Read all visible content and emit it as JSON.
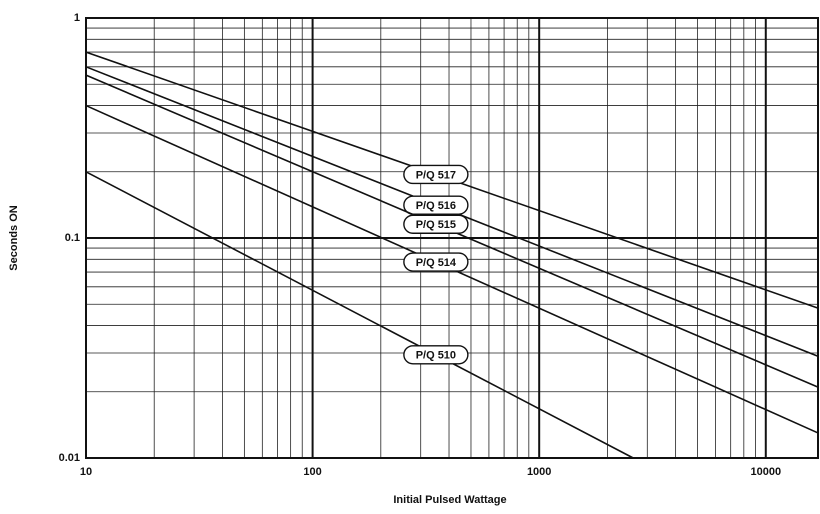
{
  "chart_data": {
    "type": "line",
    "xlabel": "Initial Pulsed Wattage",
    "ylabel": "Seconds ON",
    "xscale": "log",
    "yscale": "log",
    "grid": true,
    "xlim": [
      10,
      17000
    ],
    "ylim": [
      0.01,
      1
    ],
    "xticks": [
      10,
      100,
      1000,
      10000
    ],
    "yticks": [
      0.01,
      0.1,
      1
    ],
    "series": [
      {
        "name": "P/Q 517",
        "color": "#111111",
        "x": [
          10,
          17000
        ],
        "values": [
          0.7,
          0.048
        ]
      },
      {
        "name": "P/Q 516",
        "color": "#111111",
        "x": [
          10,
          17000
        ],
        "values": [
          0.6,
          0.029
        ]
      },
      {
        "name": "P/Q 515",
        "color": "#111111",
        "x": [
          10,
          17000
        ],
        "values": [
          0.55,
          0.021
        ]
      },
      {
        "name": "P/Q 514",
        "color": "#111111",
        "x": [
          10,
          17000
        ],
        "values": [
          0.4,
          0.013
        ]
      },
      {
        "name": "P/Q 510",
        "color": "#111111",
        "x": [
          10,
          2600
        ],
        "values": [
          0.2,
          0.01
        ]
      }
    ]
  }
}
